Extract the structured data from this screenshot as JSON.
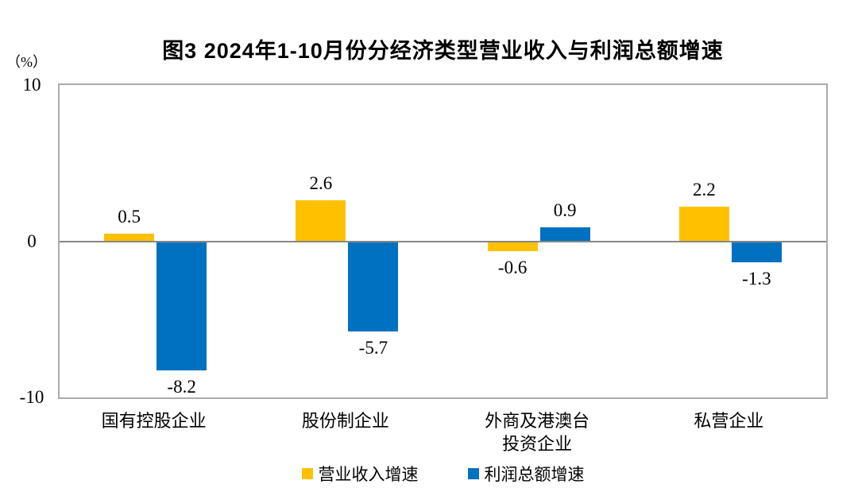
{
  "chart_data": {
    "type": "bar",
    "title": "图3  2024年1-10月份分经济类型营业收入与利润总额增速",
    "unit_label": "（%）",
    "categories": [
      "国有控股企业",
      "股份制企业",
      "外商及港澳台\n投资企业",
      "私营企业"
    ],
    "series": [
      {
        "name": "营业收入增速",
        "color": "#FFC000",
        "values": [
          0.5,
          2.6,
          -0.6,
          2.2
        ]
      },
      {
        "name": "利润总额增速",
        "color": "#0070C0",
        "values": [
          -8.2,
          -5.7,
          0.9,
          -1.3
        ]
      }
    ],
    "value_labels": [
      [
        "0.5",
        "2.6",
        "-0.6",
        "2.2"
      ],
      [
        "-8.2",
        "-5.7",
        "0.9",
        "-1.3"
      ]
    ],
    "ylim": [
      -10,
      10
    ],
    "yticks": [
      "10",
      "0",
      "-10"
    ],
    "ytick_values": [
      10,
      0,
      -10
    ],
    "grid": false,
    "legend_position": "bottom",
    "axis_colors": {
      "zero_line": "#878787",
      "plot_border": "#ababab",
      "text": "#000000"
    }
  }
}
